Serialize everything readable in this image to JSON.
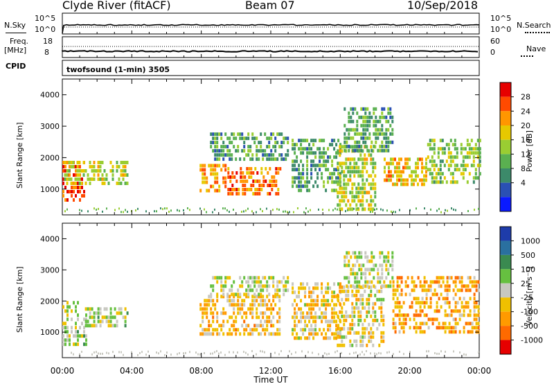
{
  "header": {
    "station": "Clyde River (fitACF)",
    "beam": "Beam 07",
    "date": "10/Sep/2018"
  },
  "params_panel": {
    "nsky_label": "N.Sky",
    "nsky_ticks": [
      "10^5",
      "10^0"
    ],
    "nsearch_label": "N.Search",
    "nsearch_ticks": [
      "10^5",
      "10^0"
    ],
    "freq_label_1": "Freq.",
    "freq_label_2": "[MHz]",
    "freq_ticks": [
      "18",
      "8"
    ],
    "nave_label": "Nave",
    "nave_ticks": [
      "60",
      "0"
    ],
    "cpid_label": "CPID",
    "cpid_value": "twofsound (1-min) 3505"
  },
  "power_panel": {
    "ylabel": "Slant Range [km]",
    "yticks": [
      "4000",
      "3000",
      "2000",
      "1000"
    ],
    "colorbar_label": "Power [dB]",
    "colorbar_ticks": [
      "28",
      "24",
      "20",
      "16",
      "12",
      "8",
      "4"
    ],
    "colors": [
      "#0a1aff",
      "#2a50b4",
      "#3c8a6a",
      "#5ab050",
      "#9acd32",
      "#e6c800",
      "#ff9600",
      "#ff4a00",
      "#e60000"
    ]
  },
  "velocity_panel": {
    "ylabel": "Slant Range [km]",
    "yticks": [
      "4000",
      "3000",
      "2000",
      "1000"
    ],
    "colorbar_label": "Velocity [m s⁻¹]",
    "colorbar_ticks": [
      "1000",
      "500",
      "100",
      "25",
      "-25",
      "-100",
      "-500",
      "-1000"
    ],
    "colors": [
      "#1e3caa",
      "#2a70a0",
      "#3a8a50",
      "#66c040",
      "#c8c8c0",
      "#f0c000",
      "#ff9a00",
      "#ff6a00",
      "#e60000"
    ]
  },
  "xaxis": {
    "label": "Time UT",
    "ticks": [
      "00:00",
      "04:00",
      "08:00",
      "12:00",
      "16:00",
      "20:00",
      "00:00"
    ]
  },
  "chart_data": [
    {
      "type": "heatmap",
      "title": "Power",
      "xlabel": "Time UT",
      "ylabel": "Slant Range [km]",
      "xlim_hours": [
        0,
        24
      ],
      "ylim": [
        180,
        4500
      ],
      "colorbar_label": "Power [dB]",
      "clim": [
        0,
        30
      ],
      "blobs": [
        {
          "t0": 0.0,
          "t1": 1.3,
          "r0": 600,
          "r1": 1900,
          "v": 26
        },
        {
          "t0": 0.1,
          "t1": 3.8,
          "r0": 1200,
          "r1": 1900,
          "v": 16
        },
        {
          "t0": 7.9,
          "t1": 9.4,
          "r0": 1000,
          "r1": 1800,
          "v": 22
        },
        {
          "t0": 9.5,
          "t1": 12.5,
          "r0": 900,
          "r1": 1700,
          "v": 24
        },
        {
          "t0": 8.5,
          "t1": 13.0,
          "r0": 2000,
          "r1": 2800,
          "v": 10
        },
        {
          "t0": 13.2,
          "t1": 16.0,
          "r0": 1000,
          "r1": 2600,
          "v": 10
        },
        {
          "t0": 15.8,
          "t1": 18.0,
          "r0": 400,
          "r1": 2400,
          "v": 16
        },
        {
          "t0": 16.2,
          "t1": 19.0,
          "r0": 2200,
          "r1": 3600,
          "v": 10
        },
        {
          "t0": 18.5,
          "t1": 21.0,
          "r0": 1100,
          "r1": 2000,
          "v": 20
        },
        {
          "t0": 21.0,
          "t1": 24.0,
          "r0": 1200,
          "r1": 2600,
          "v": 14
        }
      ]
    },
    {
      "type": "heatmap",
      "title": "Velocity",
      "xlabel": "Time UT",
      "ylabel": "Slant Range [km]",
      "xlim_hours": [
        0,
        24
      ],
      "ylim": [
        180,
        4500
      ],
      "colorbar_label": "Velocity [m s⁻¹]",
      "clim": [
        -1000,
        1000
      ],
      "blobs": [
        {
          "t0": 0.0,
          "t1": 1.4,
          "r0": 600,
          "r1": 1600,
          "v": 150
        },
        {
          "t0": 0.0,
          "t1": 1.0,
          "r0": 1600,
          "r1": 2000,
          "v": 0
        },
        {
          "t0": 1.3,
          "t1": 3.8,
          "r0": 1200,
          "r1": 1800,
          "v": 60
        },
        {
          "t0": 7.9,
          "t1": 12.5,
          "r0": 900,
          "r1": 2200,
          "v": -300
        },
        {
          "t0": 8.5,
          "t1": 13.0,
          "r0": 2200,
          "r1": 2800,
          "v": 0
        },
        {
          "t0": 13.2,
          "t1": 16.0,
          "r0": 800,
          "r1": 2600,
          "v": -200
        },
        {
          "t0": 15.8,
          "t1": 18.5,
          "r0": 600,
          "r1": 2500,
          "v": -150
        },
        {
          "t0": 16.2,
          "t1": 19.0,
          "r0": 2500,
          "r1": 3600,
          "v": 30
        },
        {
          "t0": 19.0,
          "t1": 24.0,
          "r0": 1000,
          "r1": 2800,
          "v": -400
        }
      ]
    }
  ]
}
